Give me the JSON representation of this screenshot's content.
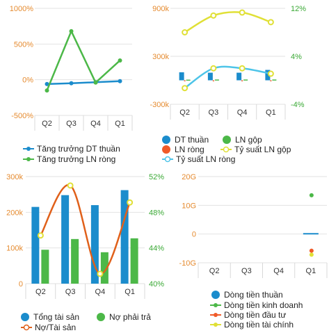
{
  "chart_data": [
    {
      "type": "line",
      "categories": [
        "Q2",
        "Q3",
        "Q4",
        "Q1"
      ],
      "y_ticks": [
        "1000%",
        "500%",
        "0%",
        "-500%"
      ],
      "ylim": [
        -500,
        1000
      ],
      "grid": true,
      "legend_position": "bottom",
      "series": [
        {
          "name": "Tăng trưởng DT thuần",
          "color": "#1b8ccc",
          "values": [
            -60,
            -50,
            -35,
            -20
          ]
        },
        {
          "name": "Tăng trưởng LN ròng",
          "color": "#4cb848",
          "values": [
            -150,
            680,
            -40,
            270
          ]
        }
      ]
    },
    {
      "type": "bar",
      "categories": [
        "Q2",
        "Q3",
        "Q4",
        "Q1"
      ],
      "y_ticks": [
        "900k",
        "300k",
        "-300k"
      ],
      "y2_ticks": [
        "12%",
        "4%",
        "-4%"
      ],
      "ylim": [
        -300,
        900
      ],
      "y2lim": [
        -4,
        12
      ],
      "grid": true,
      "legend_position": "bottom",
      "series": [
        {
          "name": "DT thuần",
          "kind": "bar",
          "axis": "left",
          "color": "#1b8ccc",
          "values": [
            100,
            95,
            95,
            130
          ]
        },
        {
          "name": "LN gộp",
          "kind": "bar",
          "axis": "left",
          "color": "#4cb848",
          "values": [
            8,
            10,
            10,
            10
          ]
        },
        {
          "name": "LN ròng",
          "kind": "bar",
          "axis": "left",
          "color": "#f05a28",
          "values": [
            0,
            0,
            0,
            0
          ]
        },
        {
          "name": "Tỷ suất LN gộp",
          "kind": "line",
          "axis": "right",
          "color": "#e0e036",
          "values": [
            8.0,
            10.8,
            11.3,
            9.7
          ]
        },
        {
          "name": "Tỷ suất LN ròng",
          "kind": "line",
          "axis": "right",
          "color": "#4dc4e8",
          "values": [
            -1.3,
            2.0,
            2.0,
            1.1
          ]
        }
      ]
    },
    {
      "type": "bar",
      "categories": [
        "Q2",
        "Q3",
        "Q4",
        "Q1"
      ],
      "y_ticks": [
        "300k",
        "200k",
        "100k",
        "0"
      ],
      "y2_ticks": [
        "52%",
        "48%",
        "44%",
        "40%"
      ],
      "ylim": [
        0,
        300
      ],
      "y2lim": [
        40,
        52
      ],
      "grid": true,
      "legend_position": "bottom",
      "series": [
        {
          "name": "Tổng tài sản",
          "kind": "bar",
          "axis": "left",
          "color": "#1b8ccc",
          "values": [
            215,
            248,
            220,
            262
          ]
        },
        {
          "name": "Nợ phải trả",
          "kind": "bar",
          "axis": "left",
          "color": "#4cb848",
          "values": [
            95,
            125,
            88,
            127
          ]
        },
        {
          "name": "Nợ/Tài sản",
          "kind": "line",
          "axis": "right",
          "color": "#e0601a",
          "marker_color": "#e0e036",
          "values": [
            45.4,
            51.0,
            41.1,
            49.1
          ]
        }
      ]
    },
    {
      "type": "bar",
      "categories": [
        "Q2",
        "Q3",
        "Q4",
        "Q1"
      ],
      "y_ticks": [
        "20G",
        "10G",
        "0",
        "-10G"
      ],
      "ylim": [
        -10,
        20
      ],
      "grid": true,
      "legend_position": "bottom",
      "series": [
        {
          "name": "Dòng tiền thuần",
          "kind": "bar",
          "color": "#1b8ccc",
          "values": [
            null,
            null,
            null,
            0.1
          ]
        },
        {
          "name": "Dòng tiền kinh doanh",
          "kind": "point",
          "color": "#4cb848",
          "values": [
            null,
            null,
            null,
            13.5
          ]
        },
        {
          "name": "Dòng tiền đầu tư",
          "kind": "point",
          "color": "#f05a28",
          "values": [
            null,
            null,
            null,
            -5.8
          ]
        },
        {
          "name": "Dòng tiền tài chính",
          "kind": "point",
          "color": "#e0e036",
          "values": [
            null,
            null,
            null,
            -7.2
          ]
        }
      ]
    }
  ]
}
